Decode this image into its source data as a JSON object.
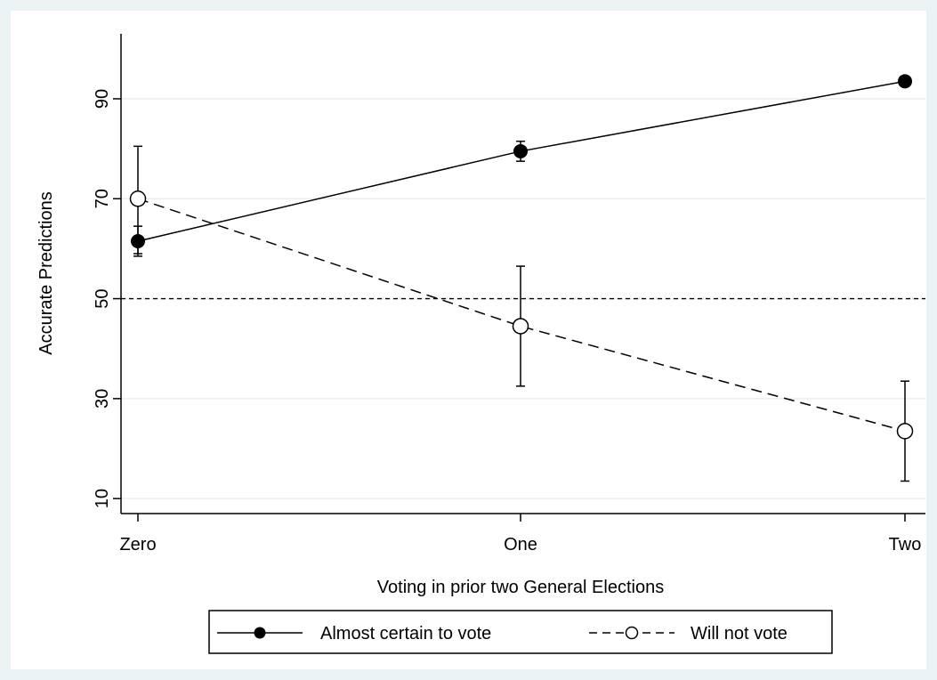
{
  "chart_data": {
    "type": "line",
    "title": "",
    "xlabel": "Voting in prior two General Elections",
    "ylabel": "Accurate Predictions",
    "categories": [
      "Zero",
      "One",
      "Two"
    ],
    "ylim": [
      7,
      103
    ],
    "yticks": [
      10,
      30,
      50,
      70,
      90
    ],
    "grid": true,
    "reference_line": 50,
    "legend_position": "bottom",
    "series": [
      {
        "name": "Almost certain to vote",
        "marker": "filled-circle",
        "line": "solid",
        "values": [
          61.5,
          79.5,
          93.5
        ],
        "lower": [
          58.5,
          77.5,
          92.5
        ],
        "upper": [
          64.5,
          81.5,
          94.5
        ]
      },
      {
        "name": "Will not vote",
        "marker": "hollow-circle",
        "line": "dashed",
        "values": [
          70,
          44.5,
          23.5
        ],
        "lower": [
          59,
          32.5,
          13.5
        ],
        "upper": [
          80.5,
          56.5,
          33.5
        ]
      }
    ],
    "colors": {
      "outer_background": "#eaf2f3",
      "plot_background": "#ffffff",
      "grid": "#e8eef0",
      "line": "#000000"
    }
  }
}
